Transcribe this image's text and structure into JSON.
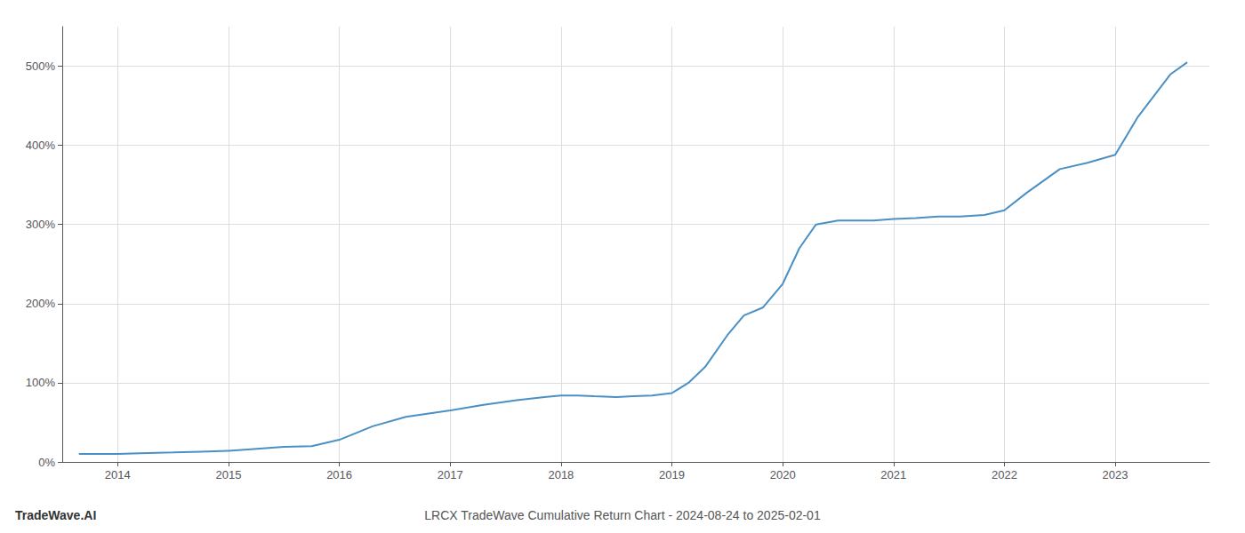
{
  "chart_data": {
    "type": "line",
    "title": "LRCX TradeWave Cumulative Return Chart - 2024-08-24 to 2025-02-01",
    "annotations": [
      "TradeWave.AI"
    ],
    "color": "#4a90c4",
    "x": [
      2013.65,
      2013.8,
      2014.0,
      2014.2,
      2014.5,
      2014.75,
      2015.0,
      2015.2,
      2015.5,
      2015.75,
      2016.0,
      2016.3,
      2016.6,
      2017.0,
      2017.3,
      2017.6,
      2017.85,
      2018.0,
      2018.15,
      2018.3,
      2018.5,
      2018.65,
      2018.82,
      2019.0,
      2019.15,
      2019.3,
      2019.5,
      2019.65,
      2019.82,
      2020.0,
      2020.15,
      2020.3,
      2020.5,
      2020.65,
      2020.82,
      2021.0,
      2021.2,
      2021.4,
      2021.6,
      2021.82,
      2022.0,
      2022.2,
      2022.5,
      2022.75,
      2023.0,
      2023.2,
      2023.5,
      2023.65
    ],
    "values": [
      10,
      10,
      10,
      11,
      12,
      13,
      14,
      16,
      19,
      20,
      28,
      45,
      57,
      65,
      72,
      78,
      82,
      84,
      84,
      83,
      82,
      83,
      84,
      87,
      100,
      120,
      160,
      185,
      195,
      225,
      270,
      300,
      305,
      305,
      305,
      307,
      308,
      310,
      310,
      312,
      318,
      340,
      370,
      378,
      388,
      435,
      490,
      505
    ],
    "xlim": [
      2013.5,
      2023.85
    ],
    "ylim": [
      0,
      550
    ],
    "xticks": [
      2014,
      2015,
      2016,
      2017,
      2018,
      2019,
      2020,
      2021,
      2022,
      2023
    ],
    "yticks": [
      {
        "value": 0,
        "label": "0%"
      },
      {
        "value": 100,
        "label": "100%"
      },
      {
        "value": 200,
        "label": "200%"
      },
      {
        "value": 300,
        "label": "300%"
      },
      {
        "value": 400,
        "label": "400%"
      },
      {
        "value": 500,
        "label": "500%"
      }
    ],
    "grid": true
  }
}
